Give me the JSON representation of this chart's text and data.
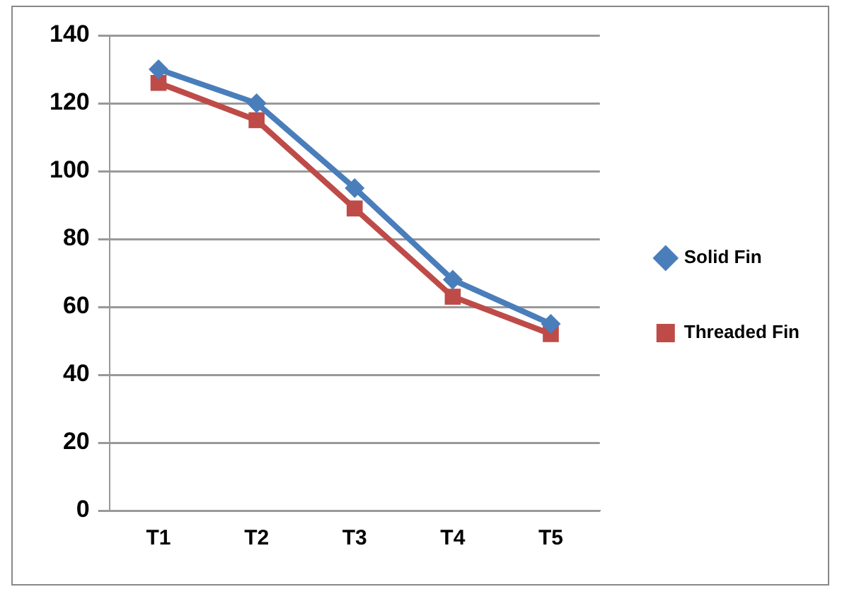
{
  "chart_data": {
    "type": "line",
    "categories": [
      "T1",
      "T2",
      "T3",
      "T4",
      "T5"
    ],
    "series": [
      {
        "name": "Solid Fin",
        "color": "#4a7ebb",
        "marker": "diamond",
        "values": [
          130,
          120,
          95,
          68,
          55
        ]
      },
      {
        "name": "Threaded Fin",
        "color": "#be4b48",
        "marker": "square",
        "values": [
          126,
          115,
          89,
          63,
          52
        ]
      }
    ],
    "ylim": [
      0,
      140
    ],
    "yticks": [
      0,
      20,
      40,
      60,
      80,
      100,
      120,
      140
    ],
    "grid": "y",
    "legend": "right"
  }
}
